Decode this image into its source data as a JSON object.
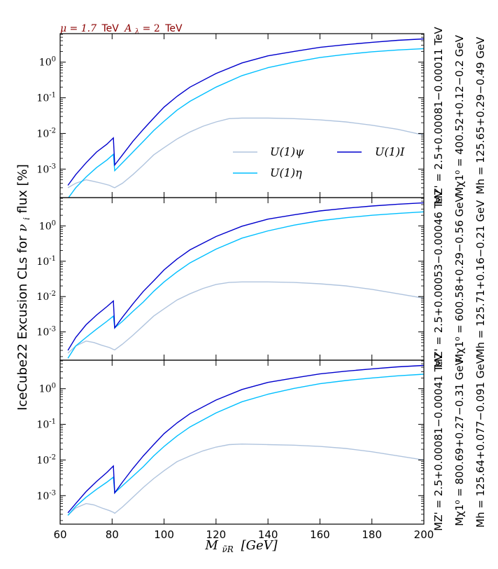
{
  "header": {
    "mu_text": "μ = 1.7",
    "mu_unit": "TeV",
    "alambda_text": "A",
    "alambda_sub": "λ",
    "alambda_eq": " = 2",
    "alambda_unit": "TeV",
    "color": "#8b0000"
  },
  "ylabel": "IceCube22 Excusion CLs for νi flux [%]",
  "ylabel_pre": "IceCube22 Excusion CLs for ",
  "ylabel_nu": "ν",
  "ylabel_sub": "i",
  "ylabel_post": " flux [%]",
  "xlabel_main": "M",
  "xlabel_sub": "ν̃R",
  "xlabel_unit": "[GeV]",
  "colors": {
    "psi": "#b0c4de",
    "eta": "#00bfff",
    "I": "#0000cd"
  },
  "legend": {
    "psi": "U(1)ψ",
    "eta": "U(1)η",
    "I": "U(1)I"
  },
  "chart_data": [
    {
      "type": "line",
      "panel_label": {
        "mz": "MZ' = 2.5+0.00081−0.00011 TeV",
        "mchi": "Mχ1⁰ = 400.52+0.12−0.2 GeV",
        "mh": "Mh = 125.65+0.29−0.49 GeV"
      },
      "xlim": [
        60,
        200
      ],
      "ylim_log10": [
        -3.8,
        0.8
      ],
      "yscale": "log",
      "xticks": [],
      "yticks": [
        "10^0",
        "10^-1",
        "10^-2",
        "10^-3"
      ],
      "series": [
        {
          "name": "U(1)ψ",
          "color": "#b0c4de",
          "x": [
            63,
            66,
            70,
            73,
            76,
            79,
            80.5,
            81,
            84,
            88,
            92,
            96,
            100,
            105,
            110,
            115,
            120,
            125,
            130,
            140,
            150,
            160,
            170,
            180,
            190,
            200
          ],
          "y": [
            0.0003,
            0.0004,
            0.0005,
            0.00045,
            0.0004,
            0.00035,
            0.00031,
            0.0003,
            0.0004,
            0.0007,
            0.0013,
            0.0025,
            0.004,
            0.007,
            0.011,
            0.016,
            0.021,
            0.026,
            0.027,
            0.027,
            0.026,
            0.024,
            0.021,
            0.017,
            0.013,
            0.009
          ]
        },
        {
          "name": "U(1)η",
          "color": "#00bfff",
          "x": [
            63,
            66,
            70,
            74,
            78,
            80.5,
            81,
            84,
            88,
            92,
            96,
            100,
            105,
            110,
            120,
            130,
            140,
            150,
            160,
            170,
            180,
            190,
            200
          ],
          "y": [
            0.00015,
            0.0003,
            0.0006,
            0.0011,
            0.0018,
            0.0026,
            0.0009,
            0.0015,
            0.003,
            0.006,
            0.012,
            0.022,
            0.045,
            0.08,
            0.2,
            0.42,
            0.7,
            1.0,
            1.35,
            1.65,
            1.95,
            2.2,
            2.4
          ]
        },
        {
          "name": "U(1)I",
          "color": "#0000cd",
          "x": [
            63,
            66,
            70,
            74,
            78,
            80.5,
            81,
            84,
            88,
            92,
            96,
            100,
            105,
            110,
            120,
            130,
            140,
            150,
            160,
            170,
            180,
            190,
            200
          ],
          "y": [
            0.00035,
            0.0007,
            0.0015,
            0.003,
            0.005,
            0.0075,
            0.0013,
            0.0025,
            0.006,
            0.013,
            0.027,
            0.055,
            0.11,
            0.2,
            0.48,
            0.95,
            1.5,
            2.0,
            2.6,
            3.1,
            3.6,
            4.1,
            4.5
          ]
        }
      ]
    },
    {
      "type": "line",
      "panel_label": {
        "mz": "MZ' = 2.5+0.00053−0.00046 TeV",
        "mchi": "Mχ1⁰ = 600.58+0.29−0.56 GeV",
        "mh": "Mh = 125.71+0.16−0.21 GeV"
      },
      "xlim": [
        60,
        200
      ],
      "ylim_log10": [
        -3.8,
        0.8
      ],
      "yscale": "log",
      "xticks": [],
      "yticks": [
        "10^0",
        "10^-1",
        "10^-2",
        "10^-3"
      ],
      "series": [
        {
          "name": "U(1)ψ",
          "color": "#b0c4de",
          "x": [
            63,
            66,
            70,
            73,
            76,
            79,
            80.5,
            81,
            84,
            88,
            92,
            96,
            100,
            105,
            110,
            115,
            120,
            125,
            130,
            140,
            150,
            160,
            170,
            180,
            190,
            200
          ],
          "y": [
            0.00025,
            0.0004,
            0.00055,
            0.0005,
            0.00042,
            0.00036,
            0.00032,
            0.00031,
            0.00045,
            0.0008,
            0.0015,
            0.0028,
            0.0045,
            0.008,
            0.012,
            0.017,
            0.022,
            0.025,
            0.026,
            0.026,
            0.025,
            0.023,
            0.02,
            0.016,
            0.012,
            0.009
          ]
        },
        {
          "name": "U(1)η",
          "color": "#00bfff",
          "x": [
            63,
            66,
            70,
            74,
            78,
            80.5,
            81,
            84,
            88,
            92,
            96,
            100,
            105,
            110,
            120,
            130,
            140,
            150,
            160,
            170,
            180,
            190,
            200
          ],
          "y": [
            0.00018,
            0.0004,
            0.0007,
            0.0012,
            0.002,
            0.0028,
            0.0013,
            0.002,
            0.0038,
            0.007,
            0.014,
            0.026,
            0.05,
            0.09,
            0.22,
            0.45,
            0.72,
            1.05,
            1.4,
            1.7,
            2.0,
            2.25,
            2.5
          ]
        },
        {
          "name": "U(1)I",
          "color": "#0000cd",
          "x": [
            63,
            66,
            70,
            74,
            78,
            80.5,
            81,
            84,
            88,
            92,
            96,
            100,
            105,
            110,
            120,
            130,
            140,
            150,
            160,
            170,
            180,
            190,
            200
          ],
          "y": [
            0.0003,
            0.0007,
            0.0016,
            0.003,
            0.0052,
            0.0075,
            0.0013,
            0.0026,
            0.0062,
            0.014,
            0.028,
            0.057,
            0.115,
            0.21,
            0.5,
            0.98,
            1.55,
            2.05,
            2.65,
            3.15,
            3.65,
            4.1,
            4.5
          ]
        }
      ]
    },
    {
      "type": "line",
      "panel_label": {
        "mz": "MZ' = 2.5+0.00081−0.00041 TeV",
        "mchi": "Mχ1⁰ = 800.69+0.27−0.31 GeV",
        "mh": "Mh = 125.64+0.077−0.091 GeV"
      },
      "xlim": [
        60,
        200
      ],
      "ylim_log10": [
        -3.8,
        0.8
      ],
      "yscale": "log",
      "xticks": [
        "60",
        "80",
        "100",
        "120",
        "140",
        "160",
        "180",
        "200"
      ],
      "yticks": [
        "10^0",
        "10^-1",
        "10^-2",
        "10^-3"
      ],
      "series": [
        {
          "name": "U(1)ψ",
          "color": "#b0c4de",
          "x": [
            63,
            66,
            70,
            73,
            76,
            79,
            80.5,
            81,
            84,
            88,
            92,
            96,
            100,
            105,
            110,
            115,
            120,
            125,
            130,
            140,
            150,
            160,
            170,
            180,
            190,
            200
          ],
          "y": [
            0.00028,
            0.00045,
            0.0006,
            0.00055,
            0.00045,
            0.00038,
            0.00034,
            0.00032,
            0.00048,
            0.0009,
            0.0017,
            0.003,
            0.005,
            0.009,
            0.013,
            0.018,
            0.023,
            0.027,
            0.028,
            0.027,
            0.026,
            0.024,
            0.021,
            0.017,
            0.013,
            0.01
          ]
        },
        {
          "name": "U(1)η",
          "color": "#00bfff",
          "x": [
            63,
            66,
            70,
            74,
            78,
            80.5,
            81,
            84,
            88,
            92,
            96,
            100,
            105,
            110,
            120,
            130,
            140,
            150,
            160,
            170,
            180,
            190,
            200
          ],
          "y": [
            0.00028,
            0.0005,
            0.0009,
            0.0015,
            0.0024,
            0.0033,
            0.0012,
            0.0019,
            0.0035,
            0.0065,
            0.013,
            0.024,
            0.047,
            0.085,
            0.21,
            0.43,
            0.7,
            1.02,
            1.38,
            1.7,
            2.0,
            2.3,
            2.55
          ]
        },
        {
          "name": "U(1)I",
          "color": "#0000cd",
          "x": [
            63,
            66,
            70,
            74,
            78,
            80.5,
            81,
            84,
            88,
            92,
            96,
            100,
            105,
            110,
            120,
            130,
            140,
            150,
            160,
            170,
            180,
            190,
            200
          ],
          "y": [
            0.00033,
            0.0006,
            0.0013,
            0.0025,
            0.0045,
            0.0068,
            0.0012,
            0.0024,
            0.0058,
            0.013,
            0.027,
            0.055,
            0.11,
            0.2,
            0.48,
            0.95,
            1.5,
            2.0,
            2.6,
            3.1,
            3.6,
            4.1,
            4.5
          ]
        }
      ]
    }
  ]
}
